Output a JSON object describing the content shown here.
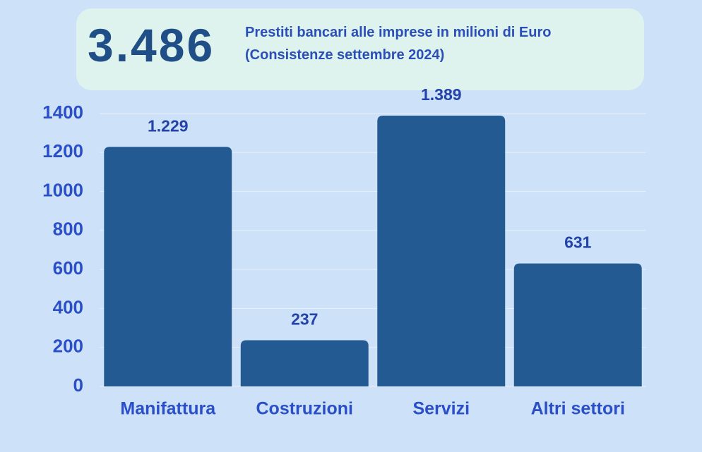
{
  "chart_data": {
    "type": "bar",
    "headline": "3.486",
    "title": "Prestiti bancari alle imprese in milioni di Euro (Consistenze settembre 2024)",
    "categories": [
      "Manifattura",
      "Costruzioni",
      "Servizi",
      "Altri settori"
    ],
    "values": [
      1229,
      237,
      1389,
      631
    ],
    "value_labels": [
      "1.229",
      "237",
      "1.389",
      "631"
    ],
    "color": "#245a92",
    "ylim": [
      0,
      1400
    ],
    "yticks": [
      0,
      200,
      400,
      600,
      800,
      1000,
      1200,
      1400
    ],
    "grid": true
  }
}
